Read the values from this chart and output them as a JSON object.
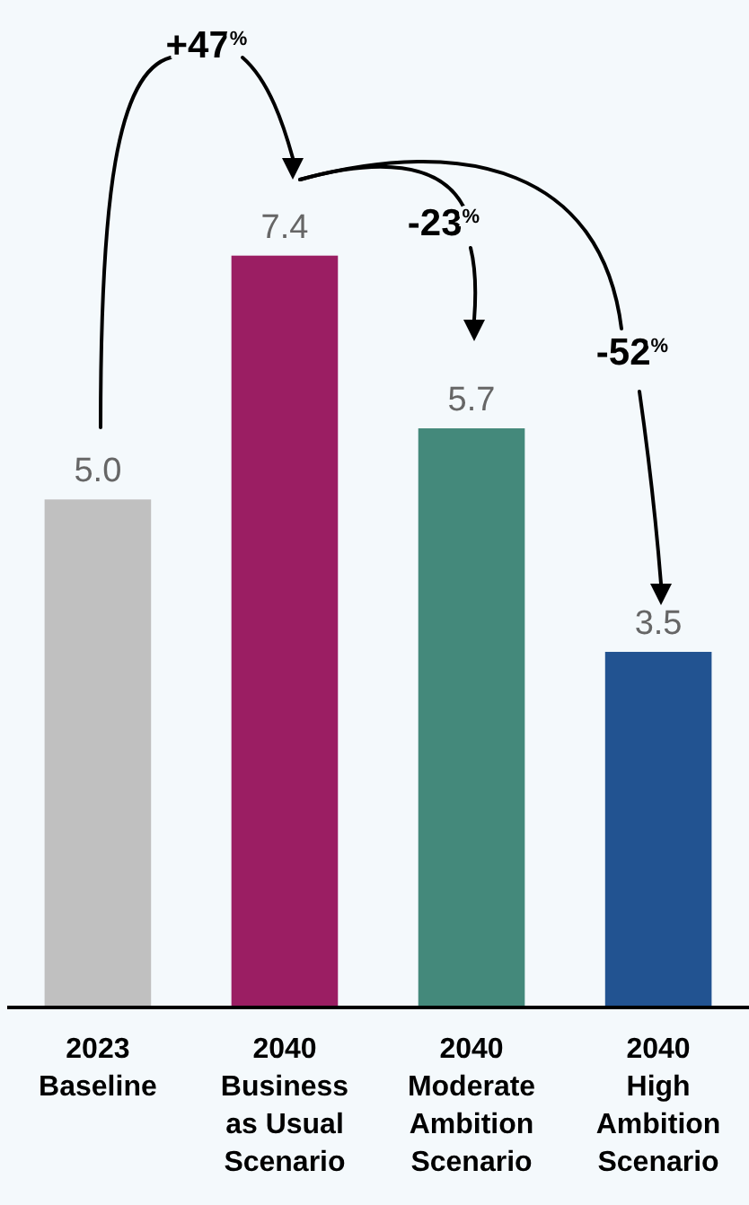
{
  "chart_data": {
    "type": "bar",
    "categories": [
      "2023\nBaseline",
      "2040\nBusiness\nas Usual\nScenario",
      "2040\nModerate\nAmbition\nScenario",
      "2040\nHigh\nAmbition\nScenario"
    ],
    "values": [
      5.0,
      7.4,
      5.7,
      3.5
    ],
    "colors": [
      "#c0c0c0",
      "#9b1e63",
      "#44897b",
      "#225391"
    ],
    "value_labels": [
      "5.0",
      "7.4",
      "5.7",
      "3.5"
    ],
    "annotations": [
      "+47$^{%}$",
      "-23$^{%}$",
      "-52$^{%}$"
    ]
  }
}
